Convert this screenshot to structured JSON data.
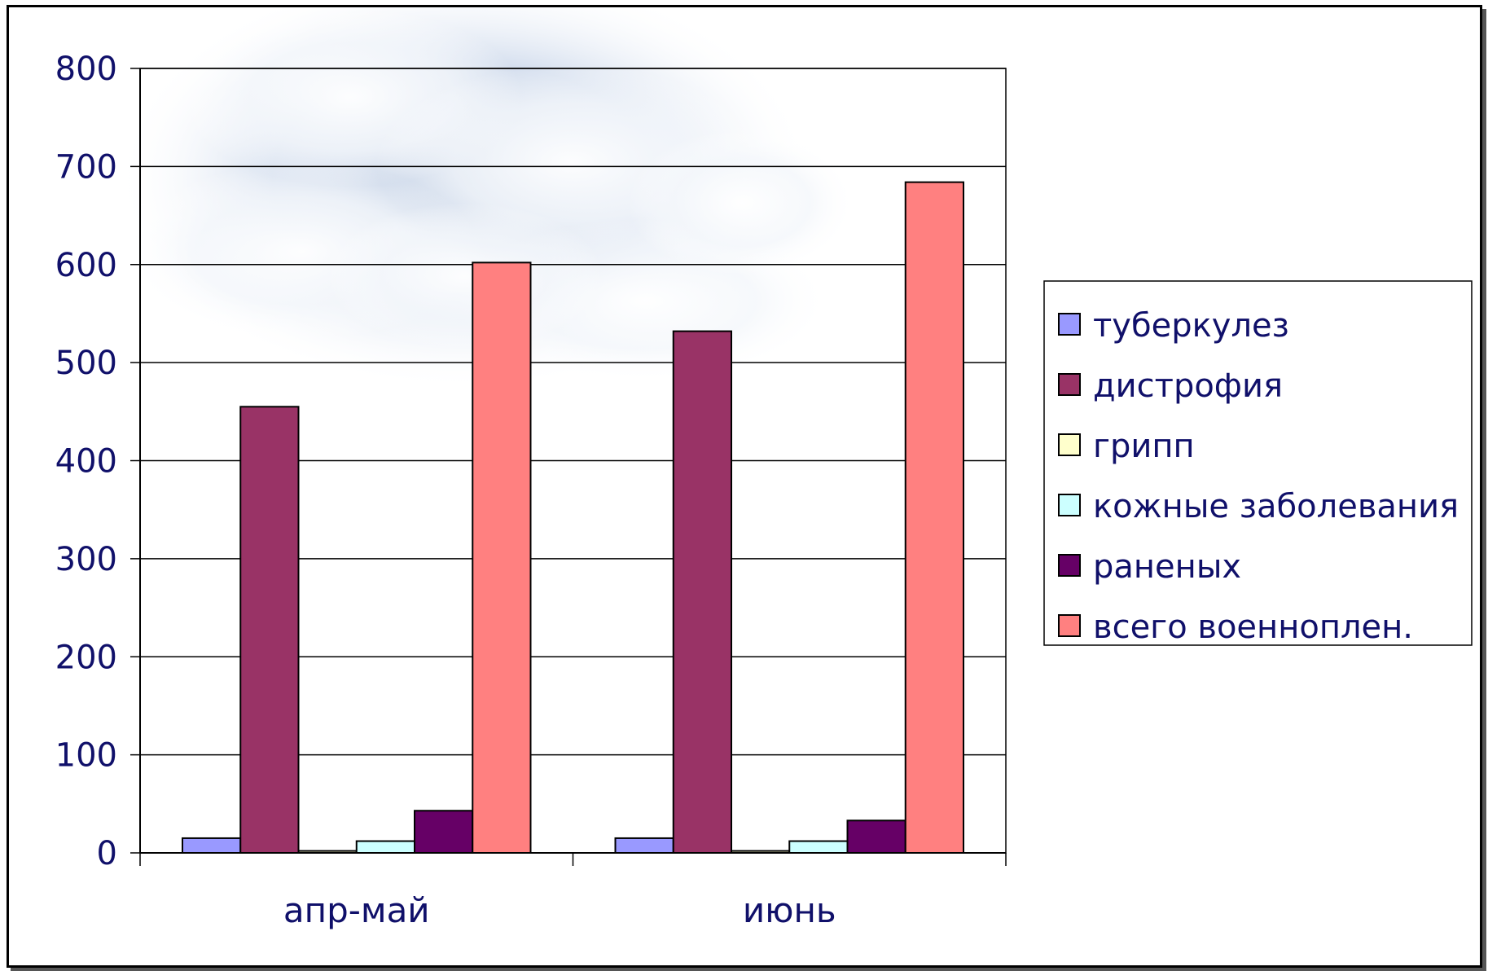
{
  "chart_data": {
    "type": "bar",
    "categories": [
      "апр-май",
      "июнь"
    ],
    "series": [
      {
        "name": "туберкулез",
        "color": "#9999ff",
        "values": [
          15,
          15
        ]
      },
      {
        "name": "дистрофия",
        "color": "#993366",
        "values": [
          455,
          532
        ]
      },
      {
        "name": "грипп",
        "color": "#ffffcc",
        "values": [
          2,
          2
        ]
      },
      {
        "name": "кожные заболевания",
        "color": "#ccffff",
        "values": [
          12,
          12
        ]
      },
      {
        "name": "раненых",
        "color": "#660066",
        "values": [
          43,
          33
        ]
      },
      {
        "name": "всего военноплен.",
        "color": "#ff8080",
        "values": [
          602,
          684
        ]
      }
    ],
    "ylim": [
      0,
      800
    ],
    "yticks": [
      0,
      100,
      200,
      300,
      400,
      500,
      600,
      700,
      800
    ],
    "grid": true,
    "legend_position": "right",
    "title": "",
    "xlabel": "",
    "ylabel": ""
  }
}
